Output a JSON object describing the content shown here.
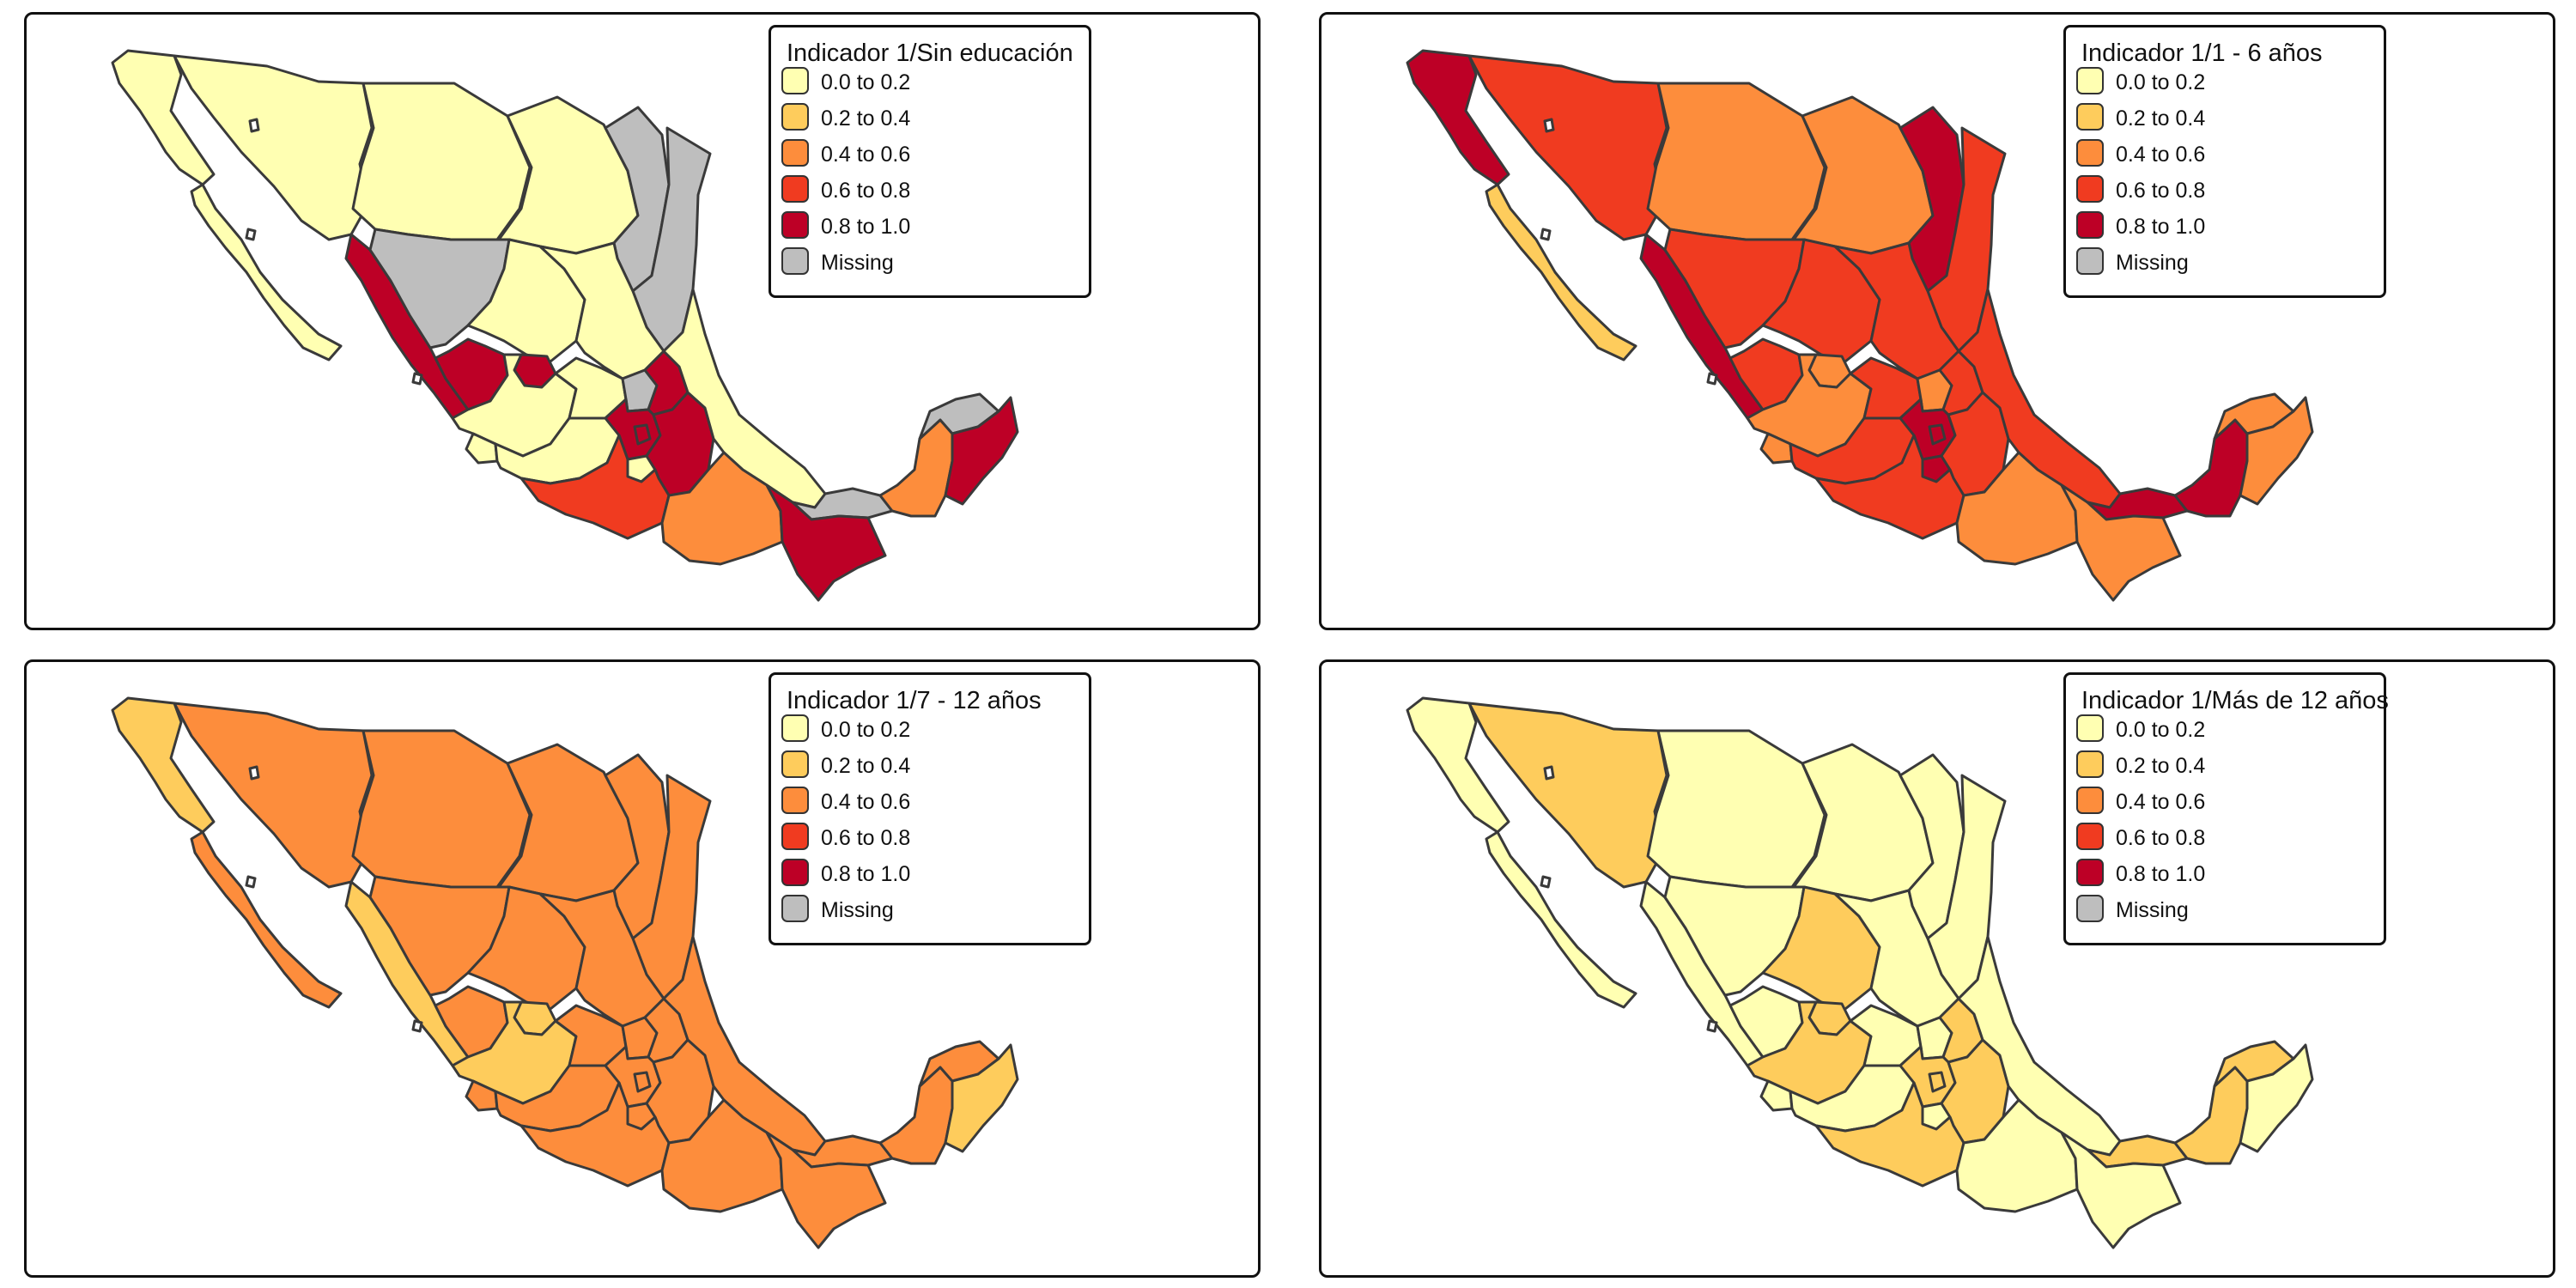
{
  "legend_classes": [
    {
      "label": "0.0 to 0.2",
      "color": "#ffffb2"
    },
    {
      "label": "0.2 to 0.4",
      "color": "#fecc5c"
    },
    {
      "label": "0.4 to 0.6",
      "color": "#fd8d3c"
    },
    {
      "label": "0.6 to 0.8",
      "color": "#f03b20"
    },
    {
      "label": "0.8 to 1.0",
      "color": "#bd0026"
    },
    {
      "label": "Missing",
      "color": "#bebebe"
    }
  ],
  "region_order": [
    "baja_california",
    "baja_california_sur",
    "sonora",
    "chihuahua",
    "coahuila",
    "nuevo_leon",
    "tamaulipas",
    "sinaloa",
    "durango",
    "zacatecas",
    "san_luis_potosi",
    "nayarit",
    "aguascalientes",
    "jalisco",
    "guanajuato",
    "queretaro",
    "hidalgo",
    "colima",
    "michoacan",
    "mexico",
    "cdmx",
    "morelos",
    "tlaxcala",
    "puebla",
    "veracruz",
    "guerrero",
    "oaxaca",
    "tabasco",
    "chiapas",
    "campeche",
    "yucatan",
    "quintana_roo"
  ],
  "maps": [
    {
      "title": "Indicador 1/Sin educación",
      "classes": {
        "baja_california": 0,
        "baja_california_sur": 0,
        "sonora": 0,
        "chihuahua": 0,
        "coahuila": 0,
        "nuevo_leon": 5,
        "tamaulipas": 5,
        "sinaloa": 4,
        "durango": 5,
        "zacatecas": 0,
        "san_luis_potosi": 0,
        "nayarit": 4,
        "aguascalientes": 4,
        "jalisco": 0,
        "guanajuato": 0,
        "queretaro": 5,
        "hidalgo": 4,
        "colima": 0,
        "michoacan": 0,
        "mexico": 4,
        "cdmx": 4,
        "morelos": 0,
        "tlaxcala": 4,
        "puebla": 4,
        "veracruz": 0,
        "guerrero": 3,
        "oaxaca": 2,
        "tabasco": 5,
        "chiapas": 4,
        "campeche": 2,
        "yucatan": 5,
        "quintana_roo": 4
      }
    },
    {
      "title": "Indicador 1/1 - 6 años",
      "classes": {
        "baja_california": 4,
        "baja_california_sur": 1,
        "sonora": 3,
        "chihuahua": 2,
        "coahuila": 2,
        "nuevo_leon": 4,
        "tamaulipas": 3,
        "sinaloa": 4,
        "durango": 3,
        "zacatecas": 3,
        "san_luis_potosi": 3,
        "nayarit": 3,
        "aguascalientes": 2,
        "jalisco": 2,
        "guanajuato": 3,
        "queretaro": 2,
        "hidalgo": 3,
        "colima": 2,
        "michoacan": 3,
        "mexico": 4,
        "cdmx": 4,
        "morelos": 4,
        "tlaxcala": 4,
        "puebla": 3,
        "veracruz": 3,
        "guerrero": 3,
        "oaxaca": 2,
        "tabasco": 4,
        "chiapas": 2,
        "campeche": 4,
        "yucatan": 2,
        "quintana_roo": 2
      }
    },
    {
      "title": "Indicador 1/7 - 12 años",
      "classes": {
        "baja_california": 1,
        "baja_california_sur": 2,
        "sonora": 2,
        "chihuahua": 2,
        "coahuila": 2,
        "nuevo_leon": 2,
        "tamaulipas": 2,
        "sinaloa": 1,
        "durango": 2,
        "zacatecas": 2,
        "san_luis_potosi": 2,
        "nayarit": 2,
        "aguascalientes": 1,
        "jalisco": 1,
        "guanajuato": 2,
        "queretaro": 2,
        "hidalgo": 2,
        "colima": 2,
        "michoacan": 2,
        "mexico": 2,
        "cdmx": 2,
        "morelos": 2,
        "tlaxcala": 2,
        "puebla": 2,
        "veracruz": 2,
        "guerrero": 2,
        "oaxaca": 2,
        "tabasco": 2,
        "chiapas": 2,
        "campeche": 2,
        "yucatan": 2,
        "quintana_roo": 1
      }
    },
    {
      "title": "Indicador 1/Más de 12 años",
      "classes": {
        "baja_california": 0,
        "baja_california_sur": 0,
        "sonora": 1,
        "chihuahua": 0,
        "coahuila": 0,
        "nuevo_leon": 0,
        "tamaulipas": 0,
        "sinaloa": 0,
        "durango": 0,
        "zacatecas": 1,
        "san_luis_potosi": 0,
        "nayarit": 0,
        "aguascalientes": 1,
        "jalisco": 1,
        "guanajuato": 0,
        "queretaro": 0,
        "hidalgo": 1,
        "colima": 0,
        "michoacan": 0,
        "mexico": 1,
        "cdmx": 1,
        "morelos": 0,
        "tlaxcala": 1,
        "puebla": 1,
        "veracruz": 0,
        "guerrero": 1,
        "oaxaca": 0,
        "tabasco": 1,
        "chiapas": 0,
        "campeche": 1,
        "yucatan": 1,
        "quintana_roo": 0
      }
    }
  ]
}
